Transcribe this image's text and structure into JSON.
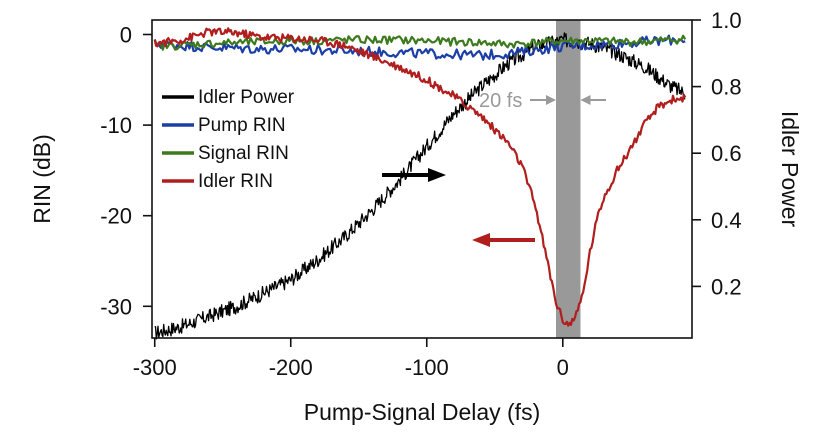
{
  "chart_data": {
    "type": "line",
    "title": "",
    "xlabel": "Pump-Signal Delay (fs)",
    "ylabel_left": "RIN (dB)",
    "ylabel_right": "Idler Power",
    "xlim": [
      -302,
      95
    ],
    "ylim_left": [
      -33.5,
      1.6
    ],
    "ylim_right": [
      0.045,
      1.0
    ],
    "x_ticks": [
      -300,
      -200,
      -100,
      0
    ],
    "x_tick_labels": [
      "-300",
      "-200",
      "-100",
      "0"
    ],
    "y_left_ticks": [
      0,
      -10,
      -20,
      -30
    ],
    "y_left_tick_labels": [
      "0",
      "-10",
      "-20",
      "-30"
    ],
    "y_right_ticks": [
      1.0,
      0.8,
      0.6,
      0.4,
      0.2
    ],
    "y_right_tick_labels": [
      "1.0",
      "0.8",
      "0.6",
      "0.4",
      "0.2"
    ],
    "grid": false,
    "legend_position": "left",
    "shaded_region": {
      "x": [
        -5,
        13
      ],
      "color": "#999999"
    },
    "annotation": {
      "text": "20 fs",
      "color": "#9a9a9a"
    },
    "series": [
      {
        "name": "Idler Power",
        "axis": "right",
        "color": "#000000",
        "x": [
          -300,
          -280,
          -260,
          -240,
          -220,
          -200,
          -180,
          -160,
          -140,
          -120,
          -100,
          -80,
          -60,
          -40,
          -20,
          0,
          20,
          40,
          60,
          80,
          90
        ],
        "y": [
          0.06,
          0.08,
          0.11,
          0.14,
          0.18,
          0.22,
          0.28,
          0.35,
          0.43,
          0.52,
          0.62,
          0.72,
          0.8,
          0.87,
          0.92,
          0.94,
          0.93,
          0.9,
          0.86,
          0.8,
          0.78
        ]
      },
      {
        "name": "Pump RIN",
        "axis": "left",
        "color": "#1b3fa6",
        "x": [
          -300,
          -280,
          -260,
          -240,
          -220,
          -200,
          -180,
          -160,
          -140,
          -120,
          -100,
          -80,
          -60,
          -40,
          -20,
          0,
          20,
          40,
          60,
          80,
          90
        ],
        "y": [
          -1.0,
          -1.2,
          -1.4,
          -1.5,
          -1.6,
          -1.6,
          -1.7,
          -1.8,
          -1.9,
          -2.0,
          -2.1,
          -2.2,
          -2.3,
          -2.1,
          -1.7,
          -1.3,
          -1.2,
          -1.0,
          -0.8,
          -0.6,
          -0.5
        ]
      },
      {
        "name": "Signal RIN",
        "axis": "left",
        "color": "#3d7a1e",
        "x": [
          -300,
          -280,
          -260,
          -240,
          -220,
          -200,
          -180,
          -160,
          -140,
          -120,
          -100,
          -80,
          -60,
          -40,
          -20,
          0,
          20,
          40,
          60,
          80,
          90
        ],
        "y": [
          -1.3,
          -1.2,
          -1.0,
          -0.9,
          -0.8,
          -0.7,
          -0.7,
          -0.6,
          -0.6,
          -0.6,
          -0.7,
          -0.8,
          -0.9,
          -1.1,
          -0.9,
          -0.7,
          -0.7,
          -0.8,
          -0.8,
          -0.6,
          -0.5
        ]
      },
      {
        "name": "Idler RIN",
        "axis": "left",
        "color": "#b01e1e",
        "x": [
          -300,
          -280,
          -260,
          -240,
          -220,
          -200,
          -180,
          -160,
          -140,
          -120,
          -100,
          -80,
          -60,
          -50,
          -40,
          -30,
          -20,
          -15,
          -10,
          -5,
          0,
          5,
          10,
          15,
          20,
          25,
          30,
          40,
          50,
          60,
          70,
          80,
          90
        ],
        "y": [
          -1.0,
          -0.6,
          0.3,
          0.2,
          -0.3,
          -0.4,
          -0.6,
          -1.2,
          -2.4,
          -3.6,
          -5.0,
          -6.8,
          -9.0,
          -10.5,
          -12.0,
          -14.5,
          -19.0,
          -22.5,
          -26.0,
          -29.5,
          -31.5,
          -32.0,
          -31.0,
          -28.5,
          -24.0,
          -20.5,
          -18.0,
          -15.0,
          -12.5,
          -10.0,
          -8.0,
          -7.2,
          -7.0
        ]
      }
    ]
  }
}
